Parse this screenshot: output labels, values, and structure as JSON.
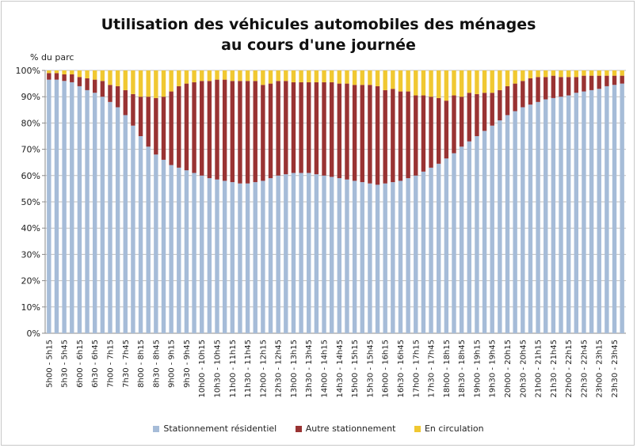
{
  "title_line1": "Utilisation des véhicules automobiles des ménages",
  "title_line2": "au cours d'une journée",
  "chart_data": {
    "type": "bar",
    "stacked": true,
    "percent_stacked": true,
    "title": "Utilisation des véhicules automobiles des ménages au cours d'une journée",
    "ylabel": "% du parc",
    "xlabel": "",
    "ylim": [
      0,
      100
    ],
    "yticks": [
      "0%",
      "10%",
      "20%",
      "30%",
      "40%",
      "50%",
      "60%",
      "70%",
      "80%",
      "90%",
      "100%"
    ],
    "grid": true,
    "legend_position": "bottom",
    "categories": [
      "5h00 - 5h15",
      "5h15 - 5h30",
      "5h30 - 5h45",
      "5h45 - 6h00",
      "6h00 - 6h15",
      "6h15 - 6h30",
      "6h30 - 6h45",
      "6h45 - 7h00",
      "7h00 - 7h15",
      "7h15 - 7h30",
      "7h30 - 7h45",
      "7h45 - 8h00",
      "8h00 - 8h15",
      "8h15 - 8h30",
      "8h30 - 8h45",
      "8h45 - 9h00",
      "9h00 - 9h15",
      "9h15 - 9h30",
      "9h30 - 9h45",
      "9h45 - 10h00",
      "10h00 - 10h15",
      "10h15 - 10h30",
      "10h30 - 10h45",
      "10h45 - 11h00",
      "11h00 - 11h15",
      "11h15 - 11h30",
      "11h30 - 11h45",
      "11h45 - 12h00",
      "12h00 - 12h15",
      "12h15 - 12h30",
      "12h30 - 12h45",
      "12h45 - 13h00",
      "13h00 - 13h15",
      "13h15 - 13h30",
      "13h30 - 13h45",
      "13h45 - 14h00",
      "14h00 - 14h15",
      "14h15 - 14h30",
      "14h30 - 14h45",
      "14h45 - 15h00",
      "15h00 - 15h15",
      "15h15 - 15h30",
      "15h30 - 15h45",
      "15h45 - 16h00",
      "16h00 - 16h15",
      "16h15 - 16h30",
      "16h30 - 16h45",
      "16h45 - 17h00",
      "17h00 - 17h15",
      "17h15 - 17h30",
      "17h30 - 17h45",
      "17h45 - 18h00",
      "18h00 - 18h15",
      "18h15 - 18h30",
      "18h30 - 18h45",
      "18h45 - 19h00",
      "19h00 - 19h15",
      "19h15 - 19h30",
      "19h30 - 19h45",
      "19h45 - 20h00",
      "20h00 - 20h15",
      "20h15 - 20h30",
      "20h30 - 20h45",
      "20h45 - 21h00",
      "21h00 - 21h15",
      "21h15 - 21h30",
      "21h30 - 21h45",
      "21h45 - 22h00",
      "22h00 - 22h15",
      "22h15 - 22h30",
      "22h30 - 22h45",
      "22h45 - 23h00",
      "23h00 - 23h15",
      "23h15 - 23h30",
      "23h30 - 23h45",
      "23h45 - 24h00"
    ],
    "series": [
      {
        "name": "Stationnement résidentiel",
        "color": "#a6bcd8",
        "values": [
          96.5,
          96.5,
          96,
          95.5,
          94,
          92.5,
          91.5,
          90,
          88,
          86,
          83,
          79,
          75,
          71,
          68,
          66,
          64,
          63,
          62,
          61,
          60,
          59,
          58.5,
          58,
          57.5,
          57,
          57,
          57.5,
          58,
          59,
          60,
          60.5,
          61,
          61,
          61,
          60.5,
          60,
          59.5,
          59,
          58.5,
          58,
          57.5,
          57,
          56.5,
          57,
          57.5,
          58,
          59,
          60,
          61.5,
          63,
          64.5,
          66.5,
          68.5,
          71,
          73,
          75,
          77,
          79,
          81,
          83,
          84.5,
          86,
          87,
          88,
          89,
          89.5,
          90,
          90.5,
          91.5,
          92,
          92.5,
          93,
          94,
          94.5,
          95
        ]
      },
      {
        "name": "Autre stationnement",
        "color": "#993333",
        "values": [
          2.5,
          2.5,
          2.5,
          3,
          3.5,
          4.5,
          5,
          6,
          6.5,
          8,
          9.5,
          12,
          15,
          19,
          21.5,
          24,
          28,
          31,
          33,
          34.5,
          36,
          37,
          38,
          38.5,
          38.5,
          39,
          39,
          38.5,
          36.5,
          36,
          36,
          35.5,
          34.5,
          34.5,
          34.5,
          35,
          35.5,
          36,
          36,
          36.5,
          36.5,
          37,
          37.5,
          37.5,
          35.5,
          35.5,
          34,
          33,
          30.5,
          29,
          27,
          25,
          22,
          22,
          19,
          18.5,
          16,
          14.5,
          12.5,
          11.5,
          11,
          10.5,
          10,
          10,
          9.5,
          8.5,
          8.5,
          7.5,
          7,
          6,
          6,
          5.5,
          5,
          4,
          3.5,
          3
        ]
      },
      {
        "name": "En circulation",
        "color": "#f0c832",
        "values": [
          1,
          1,
          1.5,
          1.5,
          2.5,
          3,
          3.5,
          4,
          5.5,
          6,
          7.5,
          9,
          10,
          10,
          10.5,
          10,
          8,
          6,
          5,
          4.5,
          4,
          4,
          3.5,
          3.5,
          4,
          4,
          4,
          4,
          5.5,
          5,
          4,
          4,
          4.5,
          4.5,
          4.5,
          4.5,
          4.5,
          4.5,
          5,
          5,
          5.5,
          5.5,
          5.5,
          6,
          7.5,
          7,
          8,
          8,
          9.5,
          9.5,
          10,
          10.5,
          11.5,
          9.5,
          10,
          8.5,
          9,
          8.5,
          8.5,
          7.5,
          6,
          5,
          4,
          3,
          2.5,
          2.5,
          2,
          2.5,
          2.5,
          2.5,
          2,
          2,
          2,
          2,
          2,
          2
        ]
      }
    ]
  }
}
